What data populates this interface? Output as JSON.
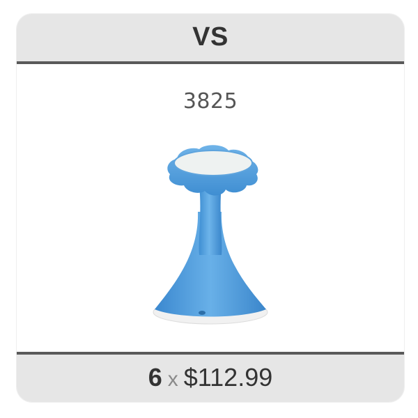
{
  "header": {
    "title": "VS"
  },
  "product": {
    "sku": "3825",
    "image_icon": "blue-wobble-stool-image",
    "color": "#5aa6e0"
  },
  "footer": {
    "quantity": "6",
    "times_symbol": "x",
    "price": "$112.99"
  }
}
